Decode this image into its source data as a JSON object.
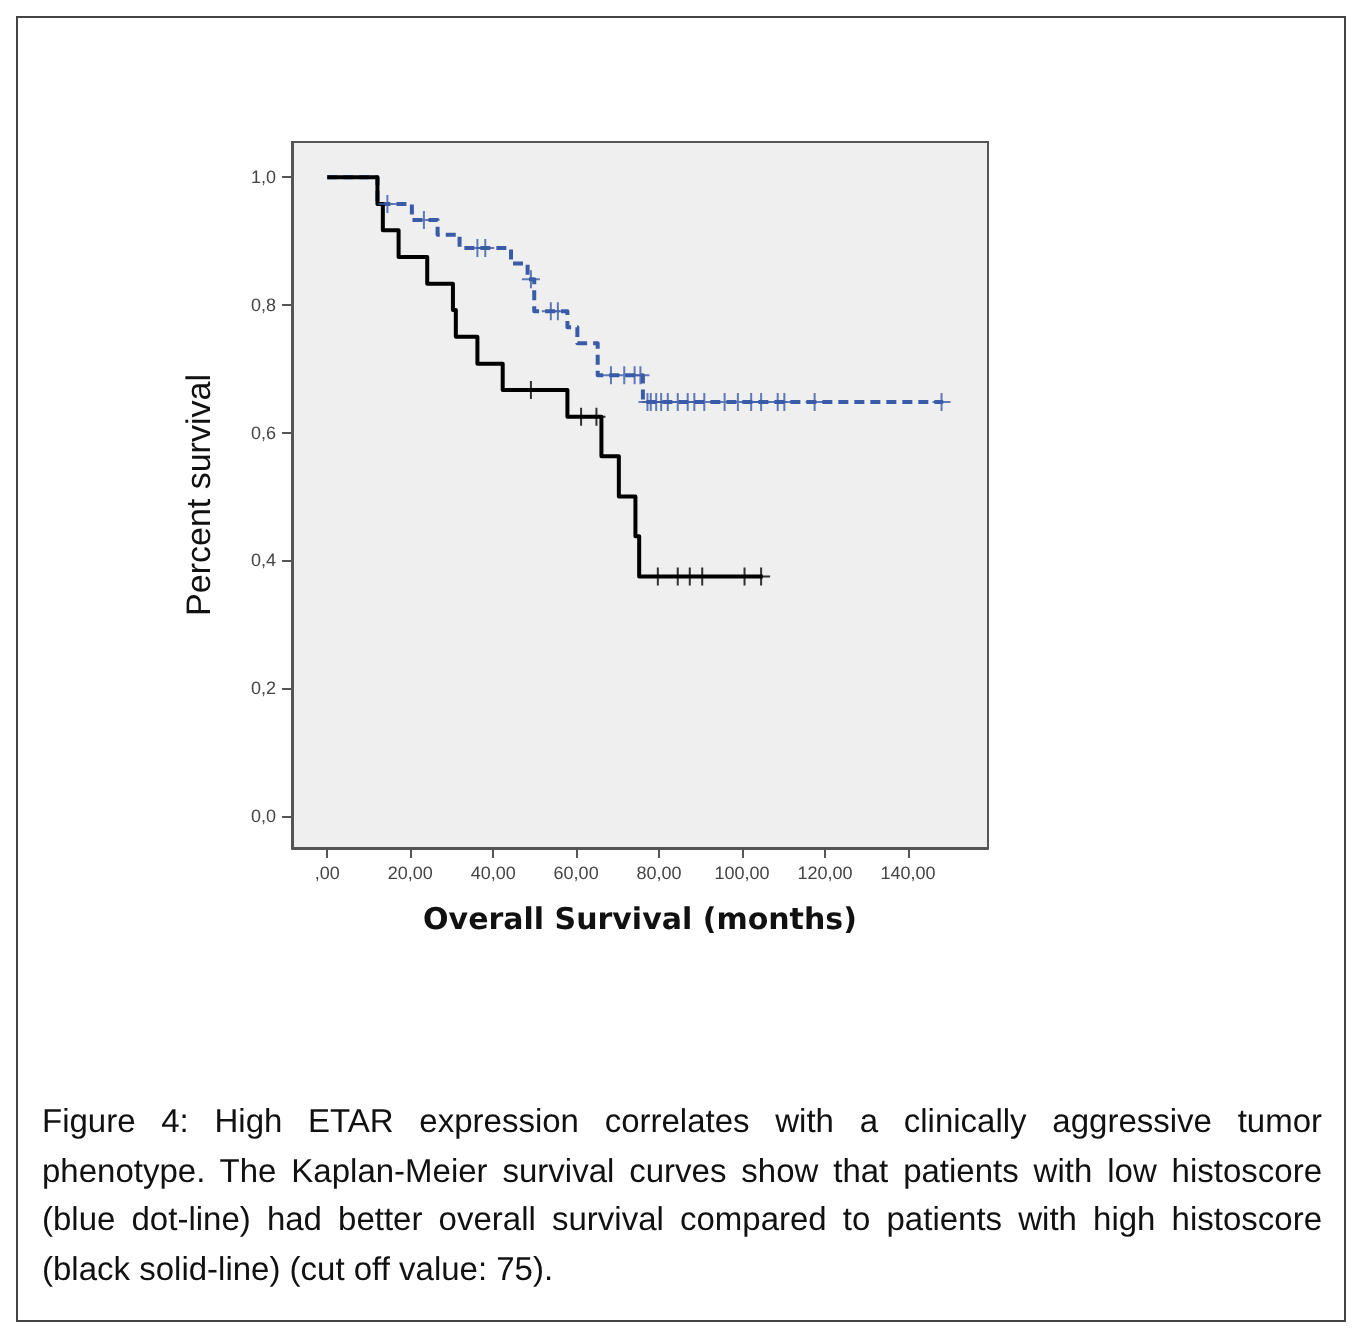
{
  "chart_data": {
    "type": "step",
    "xlabel": "Overall Survival (months)",
    "ylabel": "Percent survival",
    "xlim": [
      -8.5,
      159.3
    ],
    "ylim": [
      -0.05,
      1.055
    ],
    "xticks": [
      {
        "value": 0,
        "label": ",00"
      },
      {
        "value": 20,
        "label": "20,00"
      },
      {
        "value": 40,
        "label": "40,00"
      },
      {
        "value": 60,
        "label": "60,00"
      },
      {
        "value": 80,
        "label": "80,00"
      },
      {
        "value": 100,
        "label": "100,00"
      },
      {
        "value": 120,
        "label": "120,00"
      },
      {
        "value": 140,
        "label": "140,00"
      }
    ],
    "yticks": [
      {
        "value": 0,
        "label": "0,0"
      },
      {
        "value": 0.2,
        "label": "0,2"
      },
      {
        "value": 0.4,
        "label": "0,4"
      },
      {
        "value": 0.6,
        "label": "0,6"
      },
      {
        "value": 0.8,
        "label": "0,8"
      },
      {
        "value": 1,
        "label": "1,0"
      }
    ],
    "grid": false,
    "series": [
      {
        "color": "#3a5ba8",
        "line_style": "dashed",
        "x": [
          0,
          12.1,
          20.4,
          26.6,
          31.9,
          44.3,
          48.3,
          49.9,
          57.9,
          60.3,
          65.2,
          76.1,
          148.5
        ],
        "values": [
          1,
          0.958,
          0.933,
          0.91,
          0.889,
          0.865,
          0.84,
          0.79,
          0.765,
          0.74,
          0.69,
          0.648,
          0.648
        ]
      },
      {
        "color": "#000000",
        "line_style": "solid",
        "x": [
          0,
          12.1,
          13.4,
          17.2,
          24.1,
          30.3,
          31,
          36.2,
          42.3,
          57.9,
          66.1,
          70.3,
          74.3,
          75.2,
          105
        ],
        "values": [
          1,
          0.958,
          0.917,
          0.875,
          0.833,
          0.792,
          0.75,
          0.708,
          0.667,
          0.625,
          0.563,
          0.5,
          0.438,
          0.375,
          0.375
        ]
      },
      {
        "type": "scatter",
        "marker": "cross",
        "color": "#3a5ba8",
        "x": [
          14.5,
          23.3,
          36.2,
          38.1,
          49.1,
          53.9,
          55.6,
          68.4,
          71.6,
          74.1,
          75.5,
          77.2,
          78,
          79.3,
          80.5,
          82.1,
          84.5,
          86.9,
          88.5,
          90.9,
          95.8,
          99,
          102.2,
          104.6,
          108.6,
          110.2,
          117.5,
          148.1
        ],
        "values": [
          0.958,
          0.933,
          0.889,
          0.889,
          0.84,
          0.79,
          0.79,
          0.69,
          0.69,
          0.69,
          0.69,
          0.648,
          0.648,
          0.648,
          0.648,
          0.648,
          0.648,
          0.648,
          0.648,
          0.648,
          0.648,
          0.648,
          0.648,
          0.648,
          0.648,
          0.648,
          0.648,
          0.648
        ]
      },
      {
        "type": "scatter",
        "marker": "cross",
        "color": "#000000",
        "x": [
          49.1,
          61.2,
          64.9,
          79.7,
          84.5,
          87.4,
          90.4,
          100.6,
          104.6
        ],
        "values": [
          0.667,
          0.625,
          0.625,
          0.375,
          0.375,
          0.375,
          0.375,
          0.375,
          0.375
        ]
      }
    ],
    "annotations": [
      "Figure 4: High ETAR expression correlates with a clinically aggressive tumor phenotype. The Kaplan-Meier survival curves show that patients with low histoscore (blue dot-line) had better overall survival compared to patients with high histoscore (black solid-line) (cut off value: 75)."
    ]
  }
}
